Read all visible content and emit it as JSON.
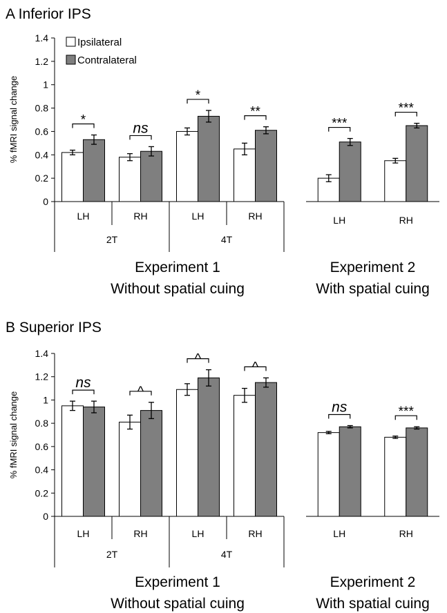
{
  "colors": {
    "ipsilateral": "#ffffff",
    "contralateral": "#7f7f7f",
    "stroke": "#000000"
  },
  "legend": {
    "ipsilateral": "Ipsilateral",
    "contralateral": "Contralateral"
  },
  "chart_data": [
    {
      "type": "bar",
      "panel_label": "A Inferior IPS",
      "ylabel": "% fMRI signal change",
      "ylim": [
        0,
        1.4
      ],
      "yticks": [
        "0",
        "0.2",
        "0.4",
        "0.6",
        "0.8",
        "1",
        "1.2",
        "1.4"
      ],
      "experiments": [
        {
          "title_line1": "Experiment 1",
          "title_line2": "Without spatial cuing",
          "groups": [
            "2T",
            "4T"
          ],
          "categories": [
            "LH",
            "RH",
            "LH",
            "RH"
          ],
          "series": [
            {
              "name": "Ipsilateral",
              "values": [
                0.42,
                0.38,
                0.6,
                0.45
              ],
              "errors": [
                0.02,
                0.03,
                0.03,
                0.05
              ]
            },
            {
              "name": "Contralateral",
              "values": [
                0.53,
                0.43,
                0.73,
                0.61
              ],
              "errors": [
                0.04,
                0.04,
                0.05,
                0.03
              ]
            }
          ],
          "significance": [
            "*",
            "ns",
            "*",
            "**"
          ]
        },
        {
          "title_line1": "Experiment 2",
          "title_line2": "With spatial cuing",
          "categories": [
            "LH",
            "RH"
          ],
          "series": [
            {
              "name": "Ipsilateral",
              "values": [
                0.2,
                0.35
              ],
              "errors": [
                0.03,
                0.02
              ]
            },
            {
              "name": "Contralateral",
              "values": [
                0.51,
                0.65
              ],
              "errors": [
                0.03,
                0.02
              ]
            }
          ],
          "significance": [
            "***",
            "***"
          ]
        }
      ]
    },
    {
      "type": "bar",
      "panel_label": "B Superior IPS",
      "ylabel": "% fMRI signal change",
      "ylim": [
        0,
        1.4
      ],
      "yticks": [
        "0",
        "0.2",
        "0.4",
        "0.6",
        "0.8",
        "1",
        "1.2",
        "1.4"
      ],
      "experiments": [
        {
          "title_line1": "Experiment 1",
          "title_line2": "Without spatial cuing",
          "groups": [
            "2T",
            "4T"
          ],
          "categories": [
            "LH",
            "RH",
            "LH",
            "RH"
          ],
          "series": [
            {
              "name": "Ipsilateral",
              "values": [
                0.95,
                0.81,
                1.09,
                1.04
              ],
              "errors": [
                0.04,
                0.06,
                0.05,
                0.06
              ]
            },
            {
              "name": "Contralateral",
              "values": [
                0.94,
                0.91,
                1.19,
                1.15
              ],
              "errors": [
                0.05,
                0.07,
                0.07,
                0.04
              ]
            }
          ],
          "significance": [
            "ns",
            "^",
            "^",
            "^"
          ]
        },
        {
          "title_line1": "Experiment 2",
          "title_line2": "With spatial cuing",
          "categories": [
            "LH",
            "RH"
          ],
          "series": [
            {
              "name": "Ipsilateral",
              "values": [
                0.72,
                0.68
              ],
              "errors": [
                0.01,
                0.01
              ]
            },
            {
              "name": "Contralateral",
              "values": [
                0.77,
                0.76
              ],
              "errors": [
                0.01,
                0.01
              ]
            }
          ],
          "significance": [
            "ns",
            "***"
          ]
        }
      ]
    }
  ]
}
